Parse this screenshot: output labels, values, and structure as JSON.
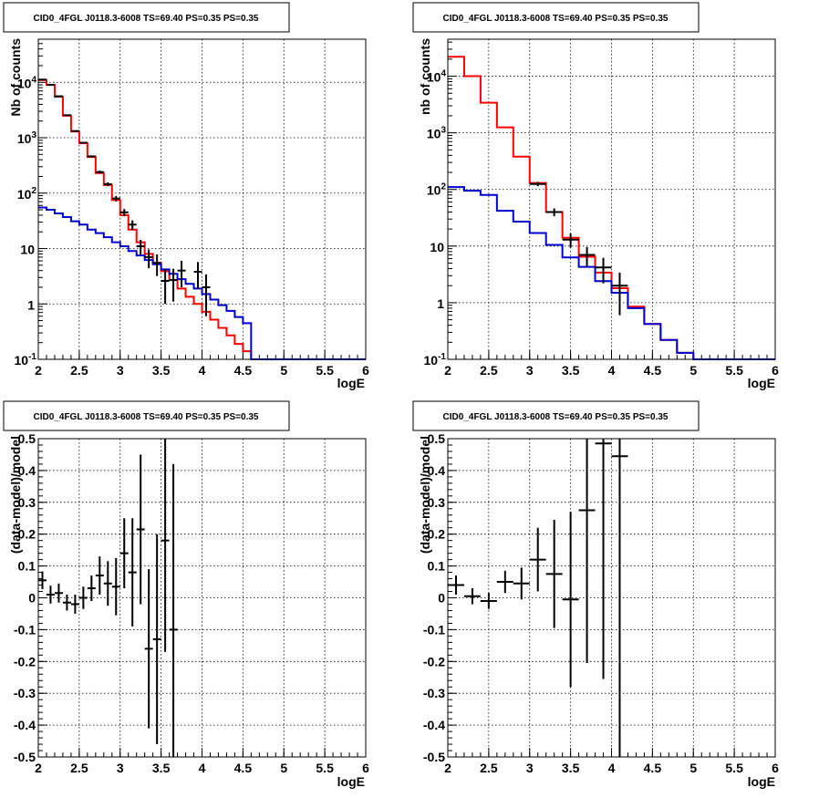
{
  "titles": {
    "p1": "CID0_4FGL J0118.3-6008 TS=69.40 PS=0.35 PS=0.35",
    "p2": "CID0_4FGL J0118.3-6008 TS=69.40 PS=0.35 PS=0.35",
    "p3": "CID0_4FGL J0118.3-6008 TS=69.40 PS=0.35 PS=0.35",
    "p4": "CID0_4FGL J0118.3-6008 TS=69.40 PS=0.35 PS=0.35"
  },
  "labels": {
    "p1_x": "logE",
    "p1_y": "Nb of counts",
    "p2_x": "logE",
    "p2_y": "nb of counts",
    "p3_x": "logE",
    "p3_y": "(data-model)/model",
    "p4_x": "logE",
    "p4_y": "(data-model)/model"
  },
  "colors": {
    "model_total": "#ff0000",
    "model_background": "#0000cc",
    "data": "#000000"
  },
  "chart_data": [
    {
      "id": "p1",
      "type": "line",
      "log_y": true,
      "grid": true,
      "xlim": [
        2,
        6
      ],
      "ylim": [
        0.1,
        60000
      ],
      "x_ticks": [
        "2",
        "2.5",
        "3",
        "3.5",
        "4",
        "4.5",
        "5",
        "5.5",
        "6"
      ],
      "y_ticks": [
        "10^-1",
        "1",
        "10",
        "10^2",
        "10^3",
        "10^4"
      ],
      "bin_edges": [
        2.0,
        2.1,
        2.2,
        2.3,
        2.4,
        2.5,
        2.6,
        2.7,
        2.8,
        2.9,
        3.0,
        3.1,
        3.2,
        3.3,
        3.4,
        3.5,
        3.6,
        3.7,
        3.8,
        3.9,
        4.0,
        4.1,
        4.2,
        4.3,
        4.4,
        4.5,
        4.6,
        4.7,
        4.8,
        4.9,
        5.0,
        5.1,
        5.2,
        5.3,
        5.4,
        5.5,
        5.6,
        5.7,
        5.8,
        5.9,
        6.0
      ],
      "series": [
        {
          "values": [
            11000,
            9000,
            5500,
            2500,
            1300,
            800,
            450,
            230,
            140,
            75,
            40,
            22,
            13,
            8,
            5.5,
            3.9,
            2.7,
            1.9,
            1.35,
            1.0,
            0.72,
            0.52,
            0.37,
            0.27,
            0.19,
            0.14,
            0.1,
            0.1,
            0.1,
            0.1,
            0.1,
            0.1,
            0.1,
            0.1,
            0.1,
            0.1,
            0.1,
            0.1,
            0.1,
            0.1
          ]
        },
        {
          "values": [
            55,
            50,
            43,
            37,
            31,
            27,
            22,
            19,
            16,
            13,
            11,
            9,
            7.5,
            6.2,
            5.2,
            4.2,
            3.5,
            2.8,
            2.3,
            1.9,
            1.5,
            1.2,
            0.95,
            0.75,
            0.58,
            0.45,
            0.1,
            0.1,
            0.1,
            0.1,
            0.1,
            0.1,
            0.1,
            0.1,
            0.1,
            0.1,
            0.1,
            0.1,
            0.1,
            0.1
          ]
        }
      ],
      "points": [
        {
          "x": 2.05,
          "y": 11200,
          "err": 110
        },
        {
          "x": 2.15,
          "y": 9000,
          "err": 95
        },
        {
          "x": 2.25,
          "y": 5600,
          "err": 75
        },
        {
          "x": 2.35,
          "y": 2550,
          "err": 50
        },
        {
          "x": 2.45,
          "y": 1320,
          "err": 36
        },
        {
          "x": 2.55,
          "y": 810,
          "err": 28
        },
        {
          "x": 2.65,
          "y": 460,
          "err": 21
        },
        {
          "x": 2.75,
          "y": 240,
          "err": 15
        },
        {
          "x": 2.85,
          "y": 145,
          "err": 12
        },
        {
          "x": 2.95,
          "y": 80,
          "err": 9
        },
        {
          "x": 3.05,
          "y": 45,
          "err": 6.7
        },
        {
          "x": 3.15,
          "y": 27,
          "err": 5.2
        },
        {
          "x": 3.25,
          "y": 11,
          "err": 3.3
        },
        {
          "x": 3.35,
          "y": 7,
          "err": 2.6
        },
        {
          "x": 3.45,
          "y": 5.5,
          "err": 2.3
        },
        {
          "x": 3.55,
          "y": 2.6,
          "err": 1.6
        },
        {
          "x": 3.65,
          "y": 2.7,
          "err": 1.6
        },
        {
          "x": 3.75,
          "y": 4,
          "err": 2.0
        },
        {
          "x": 3.95,
          "y": 3.8,
          "err": 1.9
        },
        {
          "x": 4.05,
          "y": 2.0,
          "err": 1.4
        }
      ]
    },
    {
      "id": "p2",
      "type": "line",
      "log_y": true,
      "grid": true,
      "xlim": [
        2,
        6
      ],
      "ylim": [
        0.1,
        45000
      ],
      "x_ticks": [
        "2",
        "2.5",
        "3",
        "3.5",
        "4",
        "4.5",
        "5",
        "5.5",
        "6"
      ],
      "y_ticks": [
        "10^-1",
        "1",
        "10",
        "10^2",
        "10^3",
        "10^4"
      ],
      "bin_edges": [
        2.0,
        2.2,
        2.4,
        2.6,
        2.8,
        3.0,
        3.2,
        3.4,
        3.6,
        3.8,
        4.0,
        4.2,
        4.4,
        4.6,
        4.8,
        5.0,
        5.2,
        5.4,
        5.6,
        5.8,
        6.0
      ],
      "series": [
        {
          "values": [
            22000,
            10000,
            3400,
            1250,
            380,
            130,
            40,
            14,
            6.5,
            3.4,
            1.8,
            0.85,
            0.42,
            0.22,
            0.13,
            0.1,
            0.1,
            0.1,
            0.1,
            0.1
          ]
        },
        {
          "values": [
            110,
            95,
            80,
            42,
            27,
            17,
            10.5,
            6.3,
            4.3,
            2.4,
            1.5,
            0.8,
            0.42,
            0.22,
            0.13,
            0.1,
            0.1,
            0.1,
            0.1,
            0.1
          ]
        }
      ],
      "points": [
        {
          "x": 3.1,
          "y": 125,
          "err": 11
        },
        {
          "x": 3.3,
          "y": 40,
          "err": 6.3
        },
        {
          "x": 3.5,
          "y": 13,
          "err": 3.6
        },
        {
          "x": 3.7,
          "y": 7,
          "err": 2.6
        },
        {
          "x": 3.9,
          "y": 4.2,
          "err": 2.0
        },
        {
          "x": 4.1,
          "y": 2.0,
          "err": 1.4
        }
      ]
    },
    {
      "id": "p3",
      "type": "scatter",
      "log_y": false,
      "grid": true,
      "xlim": [
        2,
        6
      ],
      "ylim": [
        -0.5,
        0.5
      ],
      "x_ticks": [
        "2",
        "2.5",
        "3",
        "3.5",
        "4",
        "4.5",
        "5",
        "5.5",
        "6"
      ],
      "y_ticks": [
        "-0.5",
        "-0.4",
        "-0.3",
        "-0.2",
        "-0.1",
        "0",
        "0.1",
        "0.2",
        "0.3",
        "0.4",
        "0.5"
      ],
      "points": [
        {
          "x": 2.05,
          "y": 0.055,
          "err": 0.028
        },
        {
          "x": 2.15,
          "y": 0.01,
          "err": 0.028
        },
        {
          "x": 2.25,
          "y": 0.015,
          "err": 0.03
        },
        {
          "x": 2.35,
          "y": -0.015,
          "err": 0.025
        },
        {
          "x": 2.45,
          "y": -0.02,
          "err": 0.03
        },
        {
          "x": 2.55,
          "y": 0.0,
          "err": 0.035
        },
        {
          "x": 2.65,
          "y": 0.03,
          "err": 0.04
        },
        {
          "x": 2.75,
          "y": 0.07,
          "err": 0.06
        },
        {
          "x": 2.85,
          "y": 0.045,
          "err": 0.07
        },
        {
          "x": 2.95,
          "y": 0.035,
          "err": 0.09
        },
        {
          "x": 3.05,
          "y": 0.14,
          "err": 0.11
        },
        {
          "x": 3.15,
          "y": 0.08,
          "err": 0.17
        },
        {
          "x": 3.25,
          "y": 0.215,
          "err": 0.235
        },
        {
          "x": 3.35,
          "y": -0.16,
          "err": 0.25
        },
        {
          "x": 3.45,
          "y": -0.13,
          "err": 0.33
        },
        {
          "x": 3.55,
          "y": 0.18,
          "err": 0.35
        },
        {
          "x": 3.65,
          "y": -0.1,
          "err": 0.52
        }
      ]
    },
    {
      "id": "p4",
      "type": "scatter",
      "log_y": false,
      "grid": true,
      "xlim": [
        2,
        6
      ],
      "ylim": [
        -0.5,
        0.5
      ],
      "x_ticks": [
        "2",
        "2.5",
        "3",
        "3.5",
        "4",
        "4.5",
        "5",
        "5.5",
        "6"
      ],
      "y_ticks": [
        "-0.5",
        "-0.4",
        "-0.3",
        "-0.2",
        "-0.1",
        "0",
        "0.1",
        "0.2",
        "0.3",
        "0.4",
        "0.5"
      ],
      "points": [
        {
          "x": 2.1,
          "y": 0.04,
          "err": 0.03
        },
        {
          "x": 2.3,
          "y": 0.005,
          "err": 0.025
        },
        {
          "x": 2.5,
          "y": -0.01,
          "err": 0.025
        },
        {
          "x": 2.7,
          "y": 0.05,
          "err": 0.035
        },
        {
          "x": 2.9,
          "y": 0.045,
          "err": 0.05
        },
        {
          "x": 3.1,
          "y": 0.12,
          "err": 0.1
        },
        {
          "x": 3.3,
          "y": 0.075,
          "err": 0.17
        },
        {
          "x": 3.5,
          "y": -0.005,
          "err": 0.275
        },
        {
          "x": 3.7,
          "y": 0.275,
          "err": 0.48
        },
        {
          "x": 3.9,
          "y": 0.485,
          "err": 0.74
        },
        {
          "x": 4.1,
          "y": 0.445,
          "err": 1.0
        }
      ]
    }
  ]
}
